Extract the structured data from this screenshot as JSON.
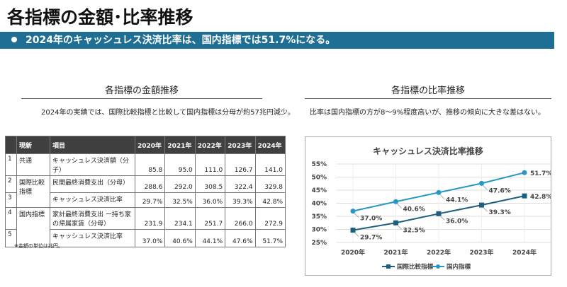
{
  "header": {
    "title": "各指標の金額･比率推移",
    "banner": "2024年のキャッシュレス決済比率は、国内指標では51.7%になる。"
  },
  "left": {
    "heading": "各指標の金額推移",
    "desc": "2024年の実績では、国際比較指標と比較して国内指標は分母が約57兆円減少。",
    "note": "※金額の単位は兆円。",
    "table": {
      "headers": [
        "",
        "現新",
        "項目",
        "2020年",
        "2021年",
        "2022年",
        "2023年",
        "2024年"
      ],
      "rows": [
        {
          "no": "1",
          "group": "共通",
          "item": "キャッシュレス決済額（分子）",
          "values": [
            "85.8",
            "95.0",
            "111.0",
            "126.7",
            "141.0"
          ]
        },
        {
          "no": "2",
          "group": "国際比較指標",
          "item": "民間最終消費支出（分母）",
          "values": [
            "288.6",
            "292.0",
            "308.5",
            "322.4",
            "329.8"
          ]
        },
        {
          "no": "3",
          "group": "",
          "item": "キャッシュレス決済比率",
          "values": [
            "29.7%",
            "32.5%",
            "36.0%",
            "39.3%",
            "42.8%"
          ]
        },
        {
          "no": "4",
          "group": "国内指標",
          "item": "家計最終消費支出 ー持ち家の帰属家賃（分母）",
          "values": [
            "231.9",
            "234.1",
            "251.7",
            "266.0",
            "272.9"
          ]
        },
        {
          "no": "5",
          "group": "",
          "item": "キャッシュレス決済比率",
          "values": [
            "37.0%",
            "40.6%",
            "44.1%",
            "47.6%",
            "51.7%"
          ]
        }
      ]
    }
  },
  "right": {
    "heading": "各指標の比率推移",
    "desc": "比率は国内指標の方が8～9%程度高いが、推移の傾向に大きな差はない。"
  },
  "chart_data": {
    "type": "line",
    "title": "キャッシュレス決済比率推移",
    "categories": [
      "2020年",
      "2021年",
      "2022年",
      "2023年",
      "2024年"
    ],
    "ylim": [
      25,
      55
    ],
    "yticks": [
      "25%",
      "30%",
      "35%",
      "40%",
      "45%",
      "50%",
      "55%"
    ],
    "grid": true,
    "legend": "bottom",
    "series": [
      {
        "name": "国際比較指標",
        "values": [
          29.7,
          32.5,
          36.0,
          39.3,
          42.8
        ],
        "labels": [
          "29.7%",
          "32.5%",
          "36.0%",
          "39.3%",
          "42.8%"
        ],
        "color": "#1d5f80",
        "marker": "square"
      },
      {
        "name": "国内指標",
        "values": [
          37.0,
          40.6,
          44.1,
          47.6,
          51.7
        ],
        "labels": [
          "37.0%",
          "40.6%",
          "44.1%",
          "47.6%",
          "51.7%"
        ],
        "color": "#2597c4",
        "marker": "circle"
      }
    ]
  }
}
